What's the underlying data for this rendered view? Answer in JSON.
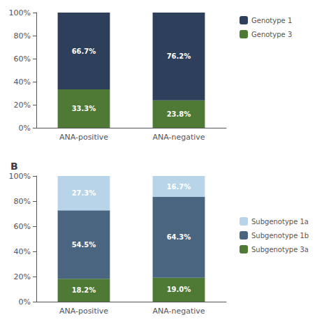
{
  "chart_data": [
    {
      "type": "bar",
      "stacked": true,
      "data_labels": true,
      "grid": false,
      "legend": "right",
      "categories": [
        "ANA-positive",
        "ANA-negative"
      ],
      "series": [
        {
          "name": "Genotype 3",
          "color": "#4e7a35",
          "values": [
            33.3,
            23.8
          ],
          "value_labels": [
            "33.3%",
            "23.8%"
          ]
        },
        {
          "name": "Genotype 1",
          "color": "#2e3f5c",
          "values": [
            66.7,
            76.2
          ],
          "value_labels": [
            "66.7%",
            "76.2%"
          ]
        }
      ],
      "ylim": [
        0,
        100
      ],
      "yticks": [
        {
          "value": 0,
          "label": "0%"
        },
        {
          "value": 20,
          "label": "20%"
        },
        {
          "value": 40,
          "label": "40%"
        },
        {
          "value": 60,
          "label": "60%"
        },
        {
          "value": 80,
          "label": "80%"
        },
        {
          "value": 100,
          "label": "100%"
        }
      ]
    },
    {
      "type": "bar",
      "stacked": true,
      "data_labels": true,
      "grid": false,
      "legend": "right",
      "title": "B",
      "categories": [
        "ANA-positive",
        "ANA-negative"
      ],
      "series": [
        {
          "name": "Subgenotype 3a",
          "color": "#4e7a35",
          "values": [
            18.2,
            19.0
          ],
          "value_labels": [
            "18.2%",
            "19.0%"
          ]
        },
        {
          "name": "Subgenotype 1b",
          "color": "#4a6580",
          "values": [
            54.5,
            64.3
          ],
          "value_labels": [
            "54.5%",
            "64.3%"
          ]
        },
        {
          "name": "Subgenotype 1a",
          "color": "#b8d4e8",
          "values": [
            27.3,
            16.7
          ],
          "value_labels": [
            "27.3%",
            "16.7%"
          ]
        }
      ],
      "ylim": [
        0,
        100
      ],
      "yticks": [
        {
          "value": 0,
          "label": "0%"
        },
        {
          "value": 20,
          "label": "20%"
        },
        {
          "value": 40,
          "label": "40%"
        },
        {
          "value": 60,
          "label": "60%"
        },
        {
          "value": 80,
          "label": "80%"
        },
        {
          "value": 100,
          "label": "100%"
        }
      ]
    }
  ]
}
